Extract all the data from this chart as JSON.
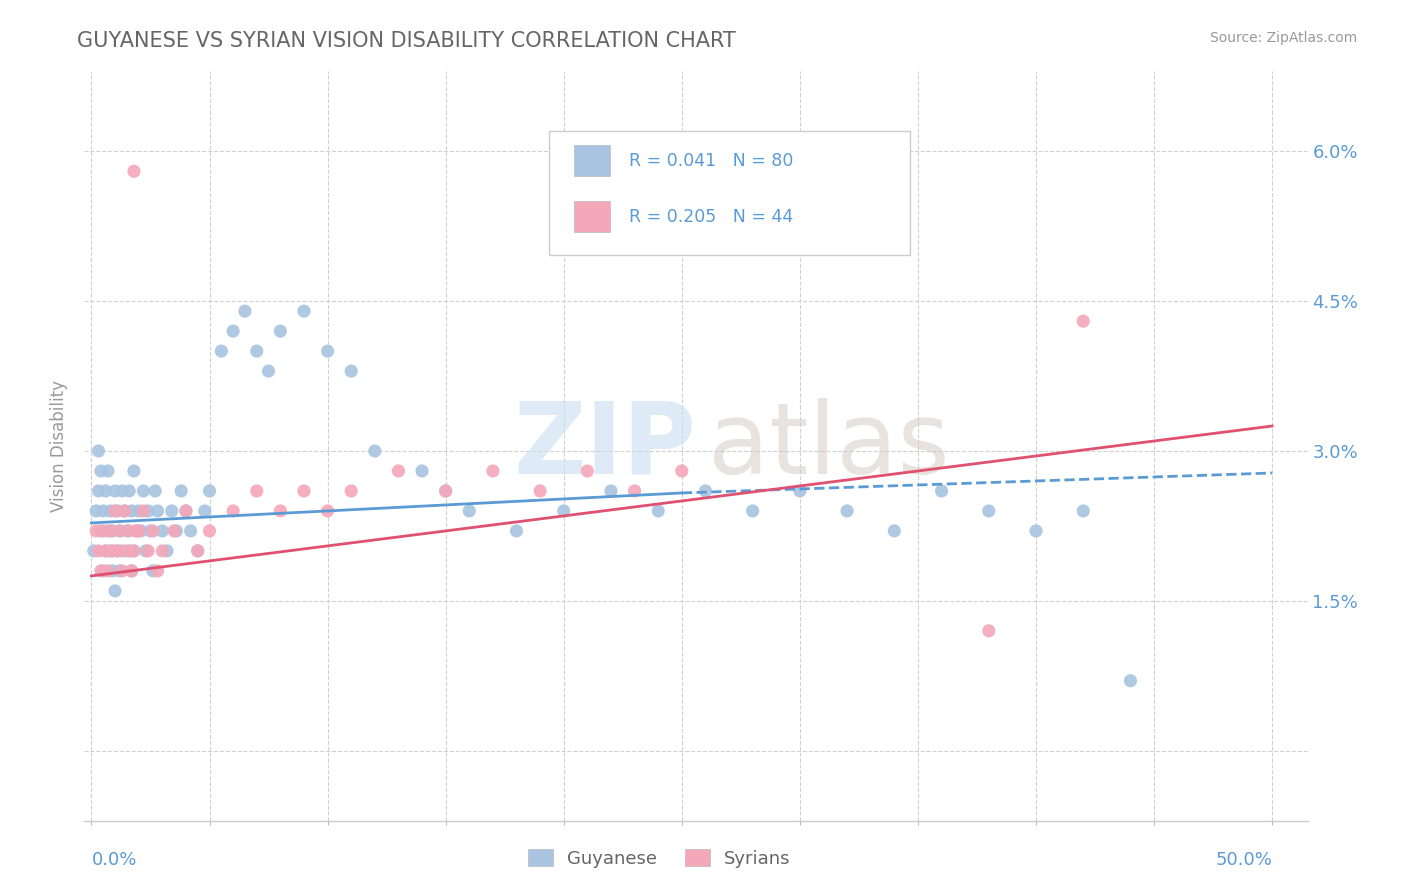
{
  "title": "GUYANESE VS SYRIAN VISION DISABILITY CORRELATION CHART",
  "source": "Source: ZipAtlas.com",
  "ylabel": "Vision Disability",
  "ytick_values": [
    0.0,
    0.015,
    0.03,
    0.045,
    0.06
  ],
  "ytick_labels": [
    "",
    "1.5%",
    "3.0%",
    "4.5%",
    "6.0%"
  ],
  "xlim": [
    -0.003,
    0.515
  ],
  "ylim": [
    -0.007,
    0.068
  ],
  "blue_color": "#a8c4e0",
  "pink_color": "#f4a7b9",
  "blue_line_color": "#5b9bd5",
  "pink_line_color": "#e05070",
  "axis_label_color": "#5b9bd5",
  "title_color": "#666666",
  "watermark_zip_color": "#c8dff0",
  "watermark_atlas_color": "#d4c8c0",
  "legend_box_color": "#f0f0f0",
  "blue_line_start_x": 0.0,
  "blue_line_start_y": 0.0228,
  "blue_line_solid_end_x": 0.25,
  "blue_line_solid_end_y": 0.0258,
  "blue_line_dash_end_x": 0.5,
  "blue_line_dash_end_y": 0.0278,
  "pink_line_start_x": 0.0,
  "pink_line_start_y": 0.0175,
  "pink_line_end_x": 0.5,
  "pink_line_end_y": 0.0325,
  "guyanese_x": [
    0.001,
    0.002,
    0.003,
    0.003,
    0.004,
    0.004,
    0.005,
    0.005,
    0.006,
    0.006,
    0.007,
    0.007,
    0.008,
    0.008,
    0.009,
    0.009,
    0.01,
    0.01,
    0.011,
    0.011,
    0.012,
    0.012,
    0.013,
    0.013,
    0.014,
    0.015,
    0.016,
    0.016,
    0.017,
    0.017,
    0.018,
    0.018,
    0.019,
    0.02,
    0.021,
    0.022,
    0.023,
    0.024,
    0.025,
    0.026,
    0.027,
    0.028,
    0.03,
    0.032,
    0.034,
    0.036,
    0.038,
    0.04,
    0.042,
    0.045,
    0.048,
    0.05,
    0.055,
    0.06,
    0.065,
    0.07,
    0.075,
    0.08,
    0.09,
    0.1,
    0.11,
    0.12,
    0.14,
    0.15,
    0.16,
    0.18,
    0.2,
    0.22,
    0.24,
    0.26,
    0.28,
    0.3,
    0.32,
    0.34,
    0.36,
    0.38,
    0.4,
    0.42,
    0.44
  ],
  "guyanese_y": [
    0.02,
    0.024,
    0.026,
    0.03,
    0.022,
    0.028,
    0.018,
    0.024,
    0.02,
    0.026,
    0.022,
    0.028,
    0.02,
    0.024,
    0.018,
    0.022,
    0.016,
    0.026,
    0.02,
    0.024,
    0.018,
    0.022,
    0.02,
    0.026,
    0.024,
    0.022,
    0.02,
    0.026,
    0.018,
    0.024,
    0.02,
    0.028,
    0.022,
    0.024,
    0.022,
    0.026,
    0.02,
    0.024,
    0.022,
    0.018,
    0.026,
    0.024,
    0.022,
    0.02,
    0.024,
    0.022,
    0.026,
    0.024,
    0.022,
    0.02,
    0.024,
    0.026,
    0.04,
    0.042,
    0.044,
    0.04,
    0.038,
    0.042,
    0.044,
    0.04,
    0.038,
    0.03,
    0.028,
    0.026,
    0.024,
    0.022,
    0.024,
    0.026,
    0.024,
    0.026,
    0.024,
    0.026,
    0.024,
    0.022,
    0.026,
    0.024,
    0.022,
    0.024,
    0.007
  ],
  "syrian_x": [
    0.002,
    0.003,
    0.004,
    0.005,
    0.006,
    0.007,
    0.008,
    0.009,
    0.01,
    0.011,
    0.012,
    0.013,
    0.014,
    0.015,
    0.016,
    0.017,
    0.018,
    0.019,
    0.02,
    0.022,
    0.024,
    0.026,
    0.028,
    0.03,
    0.035,
    0.04,
    0.045,
    0.05,
    0.06,
    0.07,
    0.08,
    0.09,
    0.1,
    0.11,
    0.13,
    0.15,
    0.17,
    0.19,
    0.21,
    0.23,
    0.25,
    0.38,
    0.42,
    0.018
  ],
  "syrian_y": [
    0.022,
    0.02,
    0.018,
    0.022,
    0.02,
    0.018,
    0.022,
    0.02,
    0.024,
    0.02,
    0.022,
    0.018,
    0.024,
    0.02,
    0.022,
    0.018,
    0.02,
    0.022,
    0.022,
    0.024,
    0.02,
    0.022,
    0.018,
    0.02,
    0.022,
    0.024,
    0.02,
    0.022,
    0.024,
    0.026,
    0.024,
    0.026,
    0.024,
    0.026,
    0.028,
    0.026,
    0.028,
    0.026,
    0.028,
    0.026,
    0.028,
    0.012,
    0.043,
    0.058
  ]
}
